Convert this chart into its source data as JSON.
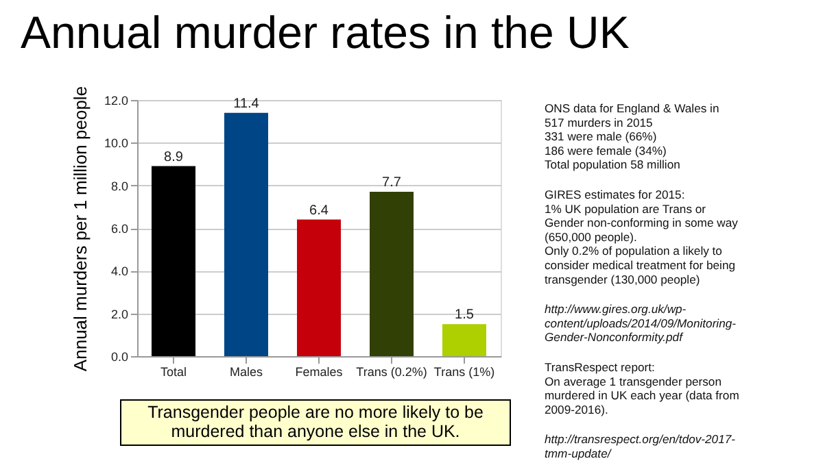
{
  "chart_data": {
    "type": "bar",
    "title": "Annual murder rates in the UK",
    "ylabel": "Annual murders per 1 million people",
    "categories": [
      "Total",
      "Males",
      "Females",
      "Trans (0.2%)",
      "Trans (1%)"
    ],
    "values": [
      8.9,
      11.4,
      6.4,
      7.7,
      1.5
    ],
    "colors": [
      "#000000",
      "#004586",
      "#c5000b",
      "#314004",
      "#aecf00"
    ],
    "ylim": [
      0,
      12
    ],
    "yticks": [
      {
        "value": 0,
        "label": "0.0"
      },
      {
        "value": 2,
        "label": "2.0"
      },
      {
        "value": 4,
        "label": "4.0"
      },
      {
        "value": 6,
        "label": "6.0"
      },
      {
        "value": 8,
        "label": "8.0"
      },
      {
        "value": 10,
        "label": "10.0"
      },
      {
        "value": 12,
        "label": "12.0"
      }
    ],
    "grid": "y",
    "data_labels": true,
    "annotations": [
      "Transgender people are no more likely to be\nmurdered than anyone else in the UK.",
      "ONS data for England & Wales in\n517 murders in 2015\n331 were male (66%)\n186 were female (34%)\nTotal population 58 million",
      "GIRES estimates for 2015:\n1% UK population are Trans or\nGender non-conforming in some way\n(650,000 people).\nOnly 0.2% of population a likely to\nconsider medical treatment for being\ntransgender (130,000 people)",
      "http://www.gires.org.uk/wp-\ncontent/uploads/2014/09/Monitoring-\nGender-Nonconformity.pdf",
      "TransRespect report:\nOn average 1 transgender person\nmurdered in UK each year (data from\n2009-2016).",
      "http://transrespect.org/en/tdov-2017-\ntmm-update/"
    ]
  }
}
